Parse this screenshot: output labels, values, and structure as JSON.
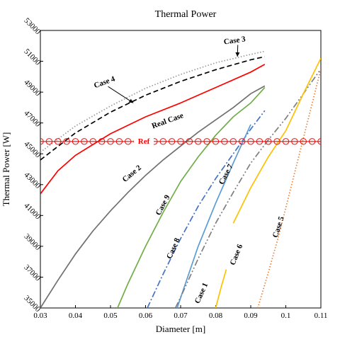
{
  "chart_data": {
    "type": "line",
    "title": "Thermal Power",
    "xlabel": "Diameter [m]",
    "ylabel": "Thermal Power [W]",
    "xlim": [
      0.03,
      0.11
    ],
    "ylim": [
      35000,
      53000
    ],
    "x_ticks": [
      "0.03",
      "0.04",
      "0.05",
      "0.06",
      "0.07",
      "0.08",
      "0.09",
      "0.1",
      "0.11"
    ],
    "y_ticks": [
      "35000",
      "37000",
      "39000",
      "41000",
      "43000",
      "45000",
      "47000",
      "49000",
      "51000",
      "53000"
    ],
    "grid": false,
    "series": [
      {
        "name": "Case 3",
        "color": "#9a9a9a",
        "dash": "dotted",
        "x": [
          0.03,
          0.04,
          0.05,
          0.06,
          0.07,
          0.08,
          0.09,
          0.094
        ],
        "y": [
          45100,
          46800,
          48100,
          49250,
          50150,
          50900,
          51450,
          51650
        ]
      },
      {
        "name": "Case 4",
        "color": "#000000",
        "dash": "dashed",
        "x": [
          0.03,
          0.04,
          0.05,
          0.06,
          0.07,
          0.08,
          0.09,
          0.094
        ],
        "y": [
          44600,
          46350,
          47700,
          48800,
          49700,
          50450,
          51100,
          51300
        ]
      },
      {
        "name": "Real Case",
        "color": "#ff0000",
        "dash": "solid",
        "x": [
          0.03,
          0.035,
          0.04,
          0.05,
          0.06,
          0.07,
          0.08,
          0.09,
          0.094
        ],
        "y": [
          42400,
          43900,
          44900,
          46300,
          47400,
          48300,
          49300,
          50300,
          50800
        ]
      },
      {
        "name": "Case 2",
        "color": "#707070",
        "dash": "solid",
        "x": [
          0.03,
          0.035,
          0.04,
          0.045,
          0.05,
          0.055,
          0.06,
          0.065,
          0.07,
          0.075,
          0.08,
          0.085,
          0.09,
          0.094
        ],
        "y": [
          35000,
          36800,
          38500,
          40000,
          41300,
          42500,
          43600,
          44600,
          45500,
          46400,
          47200,
          48000,
          48900,
          49400
        ]
      },
      {
        "name": "Case 9",
        "color": "#70ad47",
        "dash": "solid",
        "x": [
          0.052,
          0.055,
          0.06,
          0.065,
          0.07,
          0.075,
          0.08,
          0.085,
          0.09,
          0.094
        ],
        "y": [
          35000,
          36600,
          39000,
          41200,
          43200,
          44800,
          46200,
          47400,
          48300,
          49300
        ]
      },
      {
        "name": "Case 8",
        "color": "#4472c4",
        "dash": "dashdot",
        "x": [
          0.0605,
          0.065,
          0.07,
          0.075,
          0.08,
          0.085,
          0.09,
          0.094
        ],
        "y": [
          35000,
          37200,
          39500,
          41600,
          43400,
          45000,
          46600,
          47800
        ]
      },
      {
        "name": "Case 1",
        "color": "#5b9bd5",
        "dash": "solid",
        "x": [
          0.069,
          0.072,
          0.075,
          0.08,
          0.085,
          0.09
        ],
        "y": [
          35000,
          37000,
          39000,
          41800,
          44400,
          46900
        ]
      },
      {
        "name": "Case 7",
        "color": "#7f7f7f",
        "dash": "dashdotdot",
        "x": [
          0.0685,
          0.07,
          0.075,
          0.08,
          0.085,
          0.09,
          0.095,
          0.1,
          0.105,
          0.11
        ],
        "y": [
          35000,
          35700,
          38200,
          40500,
          42500,
          44400,
          45900,
          47300,
          48900,
          50500
        ]
      },
      {
        "name": "Case 6",
        "color": "#ffc000",
        "dash": "solid",
        "x": [
          0.08,
          0.0815,
          0.083
        ],
        "y": [
          35000,
          36300,
          37500
        ]
      },
      {
        "name": "Case 6 (upper)",
        "color": "#ffc000",
        "dash": "solid",
        "x": [
          0.085,
          0.09,
          0.095,
          0.1,
          0.105,
          0.11
        ],
        "y": [
          40500,
          42800,
          44800,
          46500,
          48900,
          51200
        ]
      },
      {
        "name": "Case 5",
        "color": "#ed7d31",
        "dash": "dotted",
        "x": [
          0.092,
          0.095,
          0.098,
          0.1,
          0.102,
          0.104,
          0.106,
          0.108,
          0.11
        ],
        "y": [
          35000,
          37300,
          39700,
          41500,
          43300,
          45100,
          46900,
          48700,
          50500
        ]
      },
      {
        "name": "Ref",
        "color": "#ff0000",
        "dash": "solid",
        "marker": "circle",
        "x": [
          0.03,
          0.0325,
          0.035,
          0.0375,
          0.04,
          0.0425,
          0.045,
          0.0475,
          0.05,
          0.0525,
          0.055,
          0.0575,
          0.06,
          0.0625,
          0.065,
          0.0675,
          0.07,
          0.0725,
          0.075,
          0.0775,
          0.08,
          0.0825,
          0.085,
          0.0875,
          0.09,
          0.0925,
          0.095,
          0.0975,
          0.1,
          0.1025,
          0.105,
          0.1075,
          0.11
        ],
        "y": [
          45800,
          45800,
          45800,
          45800,
          45800,
          45800,
          45800,
          45800,
          45800,
          45800,
          45800,
          45800,
          45800,
          45800,
          45800,
          45800,
          45800,
          45800,
          45800,
          45800,
          45800,
          45800,
          45800,
          45800,
          45800,
          45800,
          45800,
          45800,
          45800,
          45800,
          45800,
          45800,
          45800
        ]
      }
    ],
    "annotations": [
      {
        "text": "Case 3",
        "x": 0.0855,
        "y": 52200,
        "rotate": -8,
        "arrow_to": [
          0.0862,
          51300
        ],
        "color": "#000000"
      },
      {
        "text": "Case 4",
        "x": 0.0485,
        "y": 49500,
        "rotate": -20,
        "arrow_to": [
          0.0565,
          48300
        ],
        "color": "#000000"
      },
      {
        "text": "Real Case",
        "x": 0.0665,
        "y": 47000,
        "rotate": -20,
        "color": "#000000"
      },
      {
        "text": "Ref",
        "x": 0.0595,
        "y": 45650,
        "rotate": 0,
        "color": "#ff0000"
      },
      {
        "text": "Case 2",
        "x": 0.0565,
        "y": 43600,
        "rotate": -40,
        "color": "#000000"
      },
      {
        "text": "Case 9",
        "x": 0.0655,
        "y": 41600,
        "rotate": -62,
        "color": "#000000"
      },
      {
        "text": "Case 8",
        "x": 0.0685,
        "y": 38800,
        "rotate": -66,
        "color": "#000000"
      },
      {
        "text": "Case 7",
        "x": 0.0835,
        "y": 43600,
        "rotate": -62,
        "color": "#000000"
      },
      {
        "text": "Case 1",
        "x": 0.0765,
        "y": 35900,
        "rotate": -66,
        "color": "#000000"
      },
      {
        "text": "Case 6",
        "x": 0.0865,
        "y": 38400,
        "rotate": -68,
        "color": "#000000"
      },
      {
        "text": "Case 5",
        "x": 0.0985,
        "y": 40200,
        "rotate": -72,
        "color": "#000000"
      }
    ]
  }
}
